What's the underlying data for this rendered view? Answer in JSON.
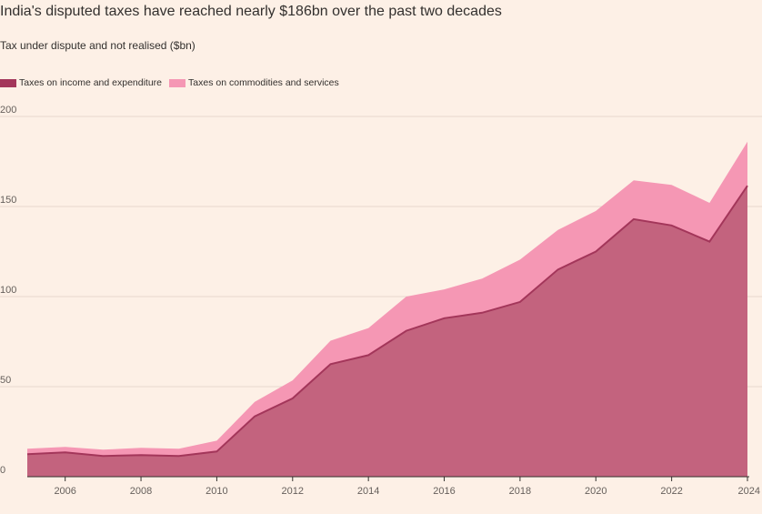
{
  "title": "India's disputed taxes have reached nearly $186bn over the past two decades",
  "subtitle": "Tax under dispute and not realised ($bn)",
  "colors": {
    "background": "#fdf0e6",
    "income": "#c3637e",
    "income_line": "#a3365a",
    "commodities": "#f597b4",
    "grid": "#e6d9ce"
  },
  "chart_data": {
    "type": "area",
    "stacked": true,
    "x": [
      2005,
      2006,
      2007,
      2008,
      2009,
      2010,
      2011,
      2012,
      2013,
      2014,
      2015,
      2016,
      2017,
      2018,
      2019,
      2020,
      2021,
      2022,
      2023,
      2024
    ],
    "series": [
      {
        "name": "Taxes on income and expenditure",
        "values": [
          12.5,
          13.5,
          11.5,
          12,
          11.5,
          14,
          33.5,
          43.5,
          62.5,
          67.5,
          81,
          88,
          91,
          97,
          115,
          125,
          143,
          139.5,
          130.5,
          161.5
        ]
      },
      {
        "name": "Taxes on commodities and services",
        "values": [
          3,
          3,
          3.5,
          4,
          4,
          6,
          8,
          10,
          13,
          15,
          19,
          16,
          19,
          23.5,
          22,
          22.5,
          21.5,
          22.5,
          21.5,
          24.5
        ]
      }
    ],
    "ylim": [
      0,
      200
    ],
    "yticks": [
      0,
      50,
      100,
      150,
      200
    ],
    "xticks": [
      2006,
      2008,
      2010,
      2012,
      2014,
      2016,
      2018,
      2020,
      2022,
      2024
    ],
    "xlim": [
      2005,
      2024
    ],
    "grid": true,
    "legend_position": "top-left"
  }
}
